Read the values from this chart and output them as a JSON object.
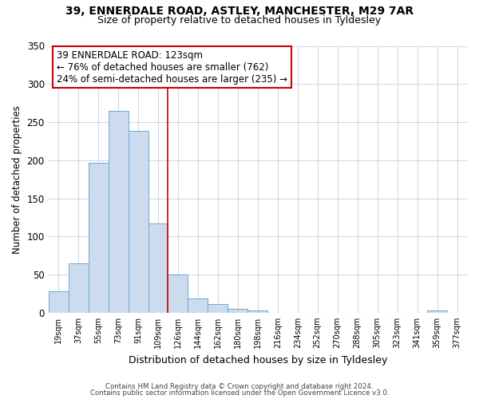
{
  "title_line1": "39, ENNERDALE ROAD, ASTLEY, MANCHESTER, M29 7AR",
  "title_line2": "Size of property relative to detached houses in Tyldesley",
  "xlabel": "Distribution of detached houses by size in Tyldesley",
  "ylabel": "Number of detached properties",
  "bin_labels": [
    "19sqm",
    "37sqm",
    "55sqm",
    "73sqm",
    "91sqm",
    "109sqm",
    "126sqm",
    "144sqm",
    "162sqm",
    "180sqm",
    "198sqm",
    "216sqm",
    "234sqm",
    "252sqm",
    "270sqm",
    "288sqm",
    "305sqm",
    "323sqm",
    "341sqm",
    "359sqm",
    "377sqm"
  ],
  "bar_heights": [
    28,
    65,
    197,
    265,
    239,
    117,
    50,
    19,
    11,
    5,
    3,
    0,
    0,
    0,
    0,
    0,
    0,
    0,
    0,
    3,
    0
  ],
  "bar_color": "#ccdcee",
  "bar_edge_color": "#6aaad4",
  "highlight_line_color": "#cc0000",
  "annotation_title": "39 ENNERDALE ROAD: 123sqm",
  "annotation_line1": "← 76% of detached houses are smaller (762)",
  "annotation_line2": "24% of semi-detached houses are larger (235) →",
  "annotation_box_color": "#ffffff",
  "annotation_box_edge": "#cc0000",
  "ylim": [
    0,
    350
  ],
  "yticks": [
    0,
    50,
    100,
    150,
    200,
    250,
    300,
    350
  ],
  "footer_line1": "Contains HM Land Registry data © Crown copyright and database right 2024.",
  "footer_line2": "Contains public sector information licensed under the Open Government Licence v3.0.",
  "background_color": "#ffffff",
  "grid_color": "#d0d8e8"
}
